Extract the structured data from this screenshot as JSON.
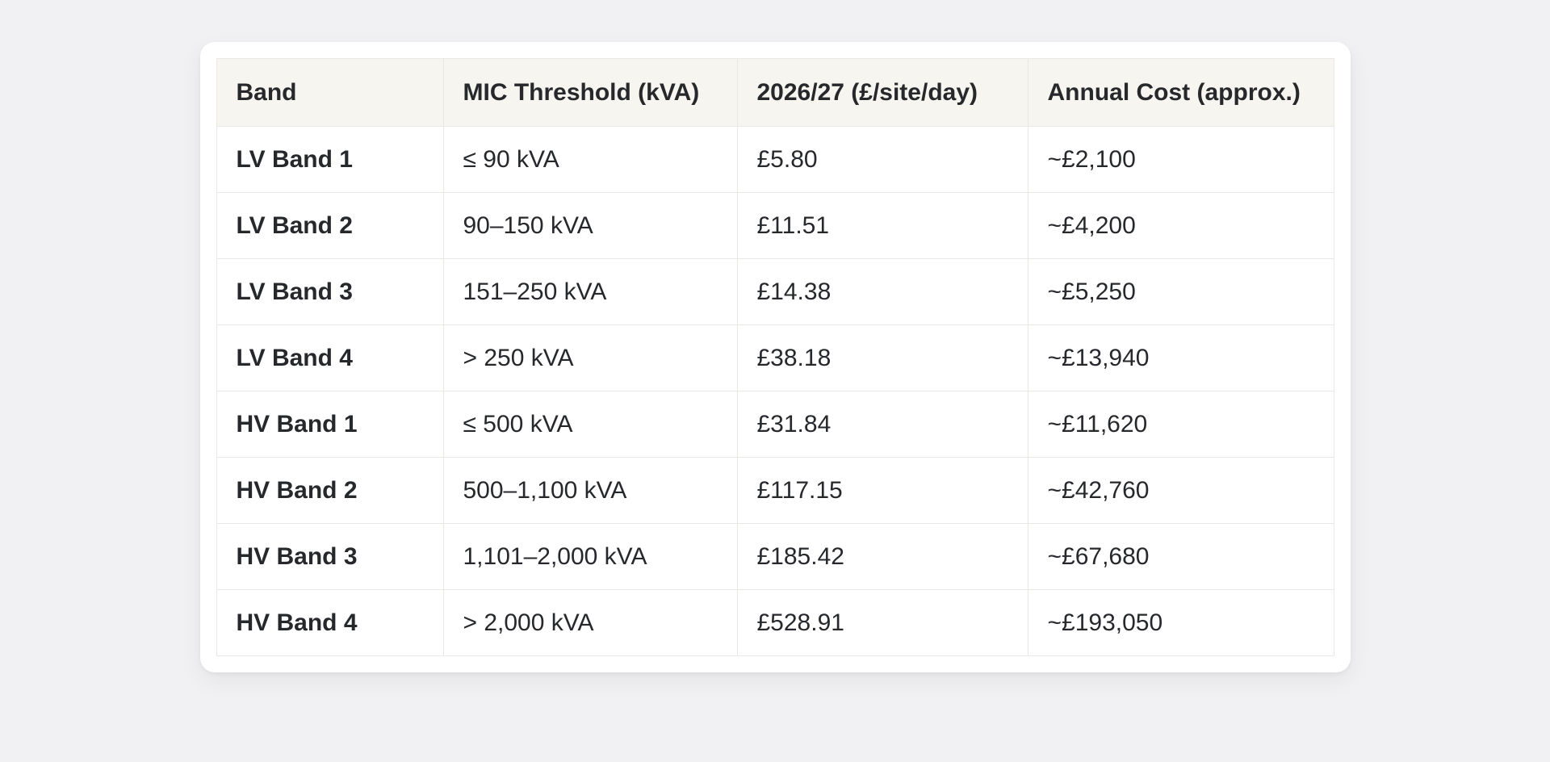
{
  "colors": {
    "page_background": "#f1f1f3",
    "card_background": "#ffffff",
    "header_background": "#f6f5ef",
    "border": "#e9e8e4",
    "text": "#26282b"
  },
  "table": {
    "columns": [
      {
        "label": "Band"
      },
      {
        "label": "MIC Threshold (kVA)"
      },
      {
        "label": "2026/27 (£/site/day)"
      },
      {
        "label": "Annual Cost (approx.)"
      }
    ],
    "rows": [
      {
        "band": "LV Band 1",
        "threshold": "≤ 90 kVA",
        "daily_rate": "£5.80",
        "annual_cost": "~£2,100"
      },
      {
        "band": "LV Band 2",
        "threshold": "90–150 kVA",
        "daily_rate": "£11.51",
        "annual_cost": "~£4,200"
      },
      {
        "band": "LV Band 3",
        "threshold": "151–250 kVA",
        "daily_rate": "£14.38",
        "annual_cost": "~£5,250"
      },
      {
        "band": "LV Band 4",
        "threshold": "> 250 kVA",
        "daily_rate": "£38.18",
        "annual_cost": "~£13,940"
      },
      {
        "band": "HV Band 1",
        "threshold": "≤ 500 kVA",
        "daily_rate": "£31.84",
        "annual_cost": "~£11,620"
      },
      {
        "band": "HV Band 2",
        "threshold": "500–1,100 kVA",
        "daily_rate": "£117.15",
        "annual_cost": "~£42,760"
      },
      {
        "band": "HV Band 3",
        "threshold": "1,101–2,000 kVA",
        "daily_rate": "£185.42",
        "annual_cost": "~£67,680"
      },
      {
        "band": "HV Band 4",
        "threshold": "> 2,000 kVA",
        "daily_rate": "£528.91",
        "annual_cost": "~£193,050"
      }
    ]
  },
  "chart_data": {
    "type": "table",
    "title": "",
    "columns": [
      "Band",
      "MIC Threshold (kVA)",
      "2026/27 (£/site/day)",
      "Annual Cost (approx.)"
    ],
    "rows": [
      [
        "LV Band 1",
        "≤ 90 kVA",
        "£5.80",
        "~£2,100"
      ],
      [
        "LV Band 2",
        "90–150 kVA",
        "£11.51",
        "~£4,200"
      ],
      [
        "LV Band 3",
        "151–250 kVA",
        "£14.38",
        "~£5,250"
      ],
      [
        "LV Band 4",
        "> 250 kVA",
        "£38.18",
        "~£13,940"
      ],
      [
        "HV Band 1",
        "≤ 500 kVA",
        "£31.84",
        "~£11,620"
      ],
      [
        "HV Band 2",
        "500–1,100 kVA",
        "£117.15",
        "~£42,760"
      ],
      [
        "HV Band 3",
        "1,101–2,000 kVA",
        "£185.42",
        "~£67,680"
      ],
      [
        "HV Band 4",
        "> 2,000 kVA",
        "£528.91",
        "~£193,050"
      ]
    ],
    "daily_rate_values": [
      5.8,
      11.51,
      14.38,
      38.18,
      31.84,
      117.15,
      185.42,
      528.91
    ],
    "annual_cost_values": [
      2100,
      4200,
      5250,
      13940,
      11620,
      42760,
      67680,
      193050
    ]
  }
}
